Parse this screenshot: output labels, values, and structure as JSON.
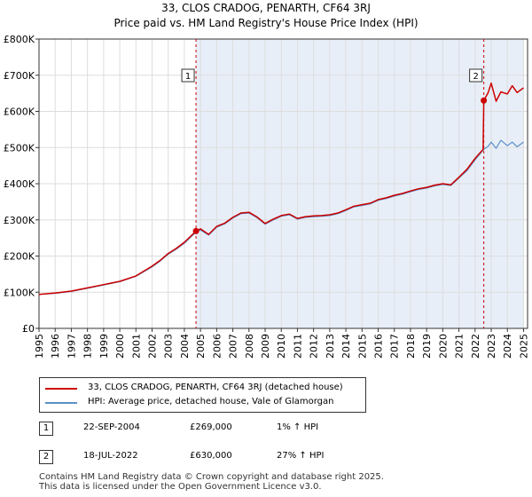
{
  "header": {
    "title": "33, CLOS CRADOG, PENARTH, CF64 3RJ",
    "subtitle": "Price paid vs. HM Land Registry's House Price Index (HPI)"
  },
  "chart_data": {
    "type": "line",
    "title": "33, CLOS CRADOG, PENARTH, CF64 3RJ",
    "subtitle": "Price paid vs. HM Land Registry's House Price Index (HPI)",
    "xlabel": "",
    "ylabel": "",
    "xlim": [
      1995,
      2025.25
    ],
    "ylim": [
      0,
      800000
    ],
    "x_ticks": [
      "1995",
      "1996",
      "1997",
      "1998",
      "1999",
      "2000",
      "2001",
      "2002",
      "2003",
      "2004",
      "2005",
      "2006",
      "2007",
      "2008",
      "2009",
      "2010",
      "2011",
      "2012",
      "2013",
      "2014",
      "2015",
      "2016",
      "2017",
      "2018",
      "2019",
      "2020",
      "2021",
      "2022",
      "2023",
      "2024",
      "2025"
    ],
    "y_ticks": [
      {
        "value": 0,
        "label": "£0"
      },
      {
        "value": 100000,
        "label": "£100K"
      },
      {
        "value": 200000,
        "label": "£200K"
      },
      {
        "value": 300000,
        "label": "£300K"
      },
      {
        "value": 400000,
        "label": "£400K"
      },
      {
        "value": 500000,
        "label": "£500K"
      },
      {
        "value": 600000,
        "label": "£600K"
      },
      {
        "value": 700000,
        "label": "£700K"
      },
      {
        "value": 800000,
        "label": "£800K"
      }
    ],
    "grid": true,
    "legend_position": "bottom",
    "series": [
      {
        "name": "33, CLOS CRADOG, PENARTH, CF64 3RJ (detached house)",
        "color": "#cc0000",
        "x": [
          1995.0,
          1996.0,
          1997.0,
          1998.0,
          1999.0,
          2000.0,
          2001.0,
          2002.0,
          2002.5,
          2003.0,
          2003.5,
          2004.0,
          2004.72,
          2005.0,
          2005.5,
          2006.0,
          2006.5,
          2007.0,
          2007.5,
          2008.0,
          2008.5,
          2009.0,
          2009.5,
          2010.0,
          2010.5,
          2011.0,
          2011.5,
          2012.0,
          2012.5,
          2013.0,
          2013.5,
          2014.0,
          2014.5,
          2015.0,
          2015.5,
          2016.0,
          2016.5,
          2017.0,
          2017.5,
          2018.0,
          2018.5,
          2019.0,
          2019.5,
          2020.0,
          2020.5,
          2021.0,
          2021.5,
          2022.0,
          2022.5,
          2022.54,
          2022.8,
          2023.0,
          2023.3,
          2023.6,
          2024.0,
          2024.3,
          2024.6,
          2025.0
        ],
        "values": [
          94000,
          98000,
          103000,
          112000,
          121000,
          130000,
          145000,
          172000,
          188000,
          207000,
          221000,
          238000,
          269000,
          275000,
          260000,
          282000,
          291000,
          307000,
          319000,
          321000,
          308000,
          290000,
          302000,
          312000,
          316000,
          304000,
          309000,
          311000,
          312000,
          314000,
          319000,
          328000,
          338000,
          342000,
          346000,
          356000,
          361000,
          368000,
          373000,
          380000,
          386000,
          390000,
          396000,
          400000,
          397000,
          418000,
          440000,
          470000,
          495000,
          630000,
          651000,
          678000,
          628000,
          654000,
          648000,
          671000,
          652000,
          665000
        ]
      },
      {
        "name": "HPI: Average price, detached house, Vale of Glamorgan",
        "color": "#5b8fc7",
        "x": [
          1995.0,
          1996.0,
          1997.0,
          1998.0,
          1999.0,
          2000.0,
          2001.0,
          2002.0,
          2002.5,
          2003.0,
          2003.5,
          2004.0,
          2004.72,
          2005.0,
          2005.5,
          2006.0,
          2006.5,
          2007.0,
          2007.5,
          2008.0,
          2008.5,
          2009.0,
          2009.5,
          2010.0,
          2010.5,
          2011.0,
          2011.5,
          2012.0,
          2012.5,
          2013.0,
          2013.5,
          2014.0,
          2014.5,
          2015.0,
          2015.5,
          2016.0,
          2016.5,
          2017.0,
          2017.5,
          2018.0,
          2018.5,
          2019.0,
          2019.5,
          2020.0,
          2020.5,
          2021.0,
          2021.5,
          2022.0,
          2022.54,
          2022.8,
          2023.0,
          2023.3,
          2023.6,
          2024.0,
          2024.3,
          2024.6,
          2025.0
        ],
        "values": [
          94000,
          97000,
          102000,
          111000,
          120000,
          129000,
          144000,
          170000,
          186000,
          205000,
          219000,
          235000,
          266000,
          272000,
          258000,
          280000,
          289000,
          305000,
          317000,
          319000,
          306000,
          288000,
          300000,
          310000,
          314000,
          302000,
          307000,
          309000,
          310000,
          312000,
          317000,
          326000,
          336000,
          340000,
          344000,
          354000,
          359000,
          366000,
          371000,
          378000,
          384000,
          388000,
          394000,
          398000,
          395000,
          416000,
          436000,
          466000,
          495000,
          503000,
          515000,
          498000,
          520000,
          505000,
          515000,
          502000,
          515000
        ]
      }
    ],
    "annotations": [
      {
        "label": "1",
        "x": 2004.72,
        "value": 269000
      },
      {
        "label": "2",
        "x": 2022.54,
        "value": 630000
      }
    ],
    "highlight_band_end": 2025.0
  },
  "legend": [
    {
      "label": "33, CLOS CRADOG, PENARTH, CF64 3RJ (detached house)",
      "color": "#cc0000"
    },
    {
      "label": "HPI: Average price, detached house, Vale of Glamorgan",
      "color": "#5b8fc7"
    }
  ],
  "sales": [
    {
      "num": "1",
      "date": "22-SEP-2004",
      "price": "£269,000",
      "hpi": "1% ↑ HPI"
    },
    {
      "num": "2",
      "date": "18-JUL-2022",
      "price": "£630,000",
      "hpi": "27% ↑ HPI"
    }
  ],
  "footer": {
    "line1": "Contains HM Land Registry data © Crown copyright and database right 2025.",
    "line2": "This data is licensed under the Open Government Licence v3.0."
  }
}
